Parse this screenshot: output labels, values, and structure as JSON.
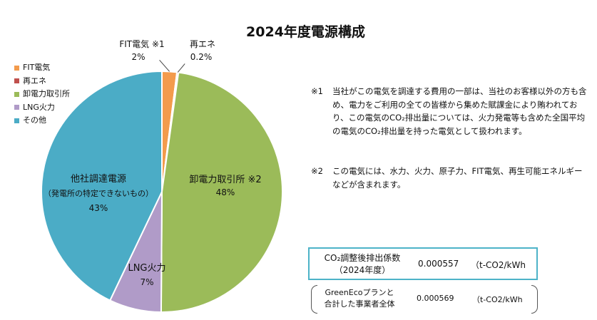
{
  "chart_data": {
    "type": "pie",
    "title": "2024年度電源構成",
    "slices": [
      {
        "name": "FIT電気",
        "label": "FIT電気 ※1",
        "value": 2,
        "value_label": "2%",
        "color": "#f39b4c"
      },
      {
        "name": "再エネ",
        "label": "再エネ",
        "value": 0.2,
        "value_label": "0.2%",
        "color": "#c0504d"
      },
      {
        "name": "卸電力取引所",
        "label": "卸電力取引所 ※2",
        "value": 48,
        "value_label": "48%",
        "color": "#9bbb59"
      },
      {
        "name": "LNG火力",
        "label": "LNG火力",
        "value": 7,
        "value_label": "7%",
        "color": "#b09bc8"
      },
      {
        "name": "その他",
        "label": "他社調達電源",
        "sublabel": "（発電所の特定できないもの）",
        "value": 43,
        "value_label": "43%",
        "color": "#4bacc6"
      }
    ],
    "legend": [
      "FIT電気",
      "再エネ",
      "卸電力取引所",
      "LNG火力",
      "その他"
    ],
    "legend_position": "top-left"
  },
  "notes": [
    {
      "mark": "※1",
      "text": "当社がこの電気を調達する費用の一部は、当社のお客様以外の方も含め、電力をご利用の全ての皆様から集めた賦課金により賄われており、この電気のCO₂排出量については、火力発電等も含めた全国平均の電気のCO₂排出量を持った電気として扱われます。"
    },
    {
      "mark": "※2",
      "text": "この電気には、水力、火力、原子力、FIT電気、再生可能エネルギーなどが含まれます。"
    }
  ],
  "coefficients": {
    "main": {
      "label_line1": "CO₂調整後排出係数",
      "label_line2": "（2024年度）",
      "value": "0.000557",
      "unit": "（t-CO2/kWh"
    },
    "sub": {
      "label_line1": "GreenEcoプランと",
      "label_line2": "合計した事業者全体",
      "value": "0.000569",
      "unit": "（t-CO2/kWh"
    }
  }
}
